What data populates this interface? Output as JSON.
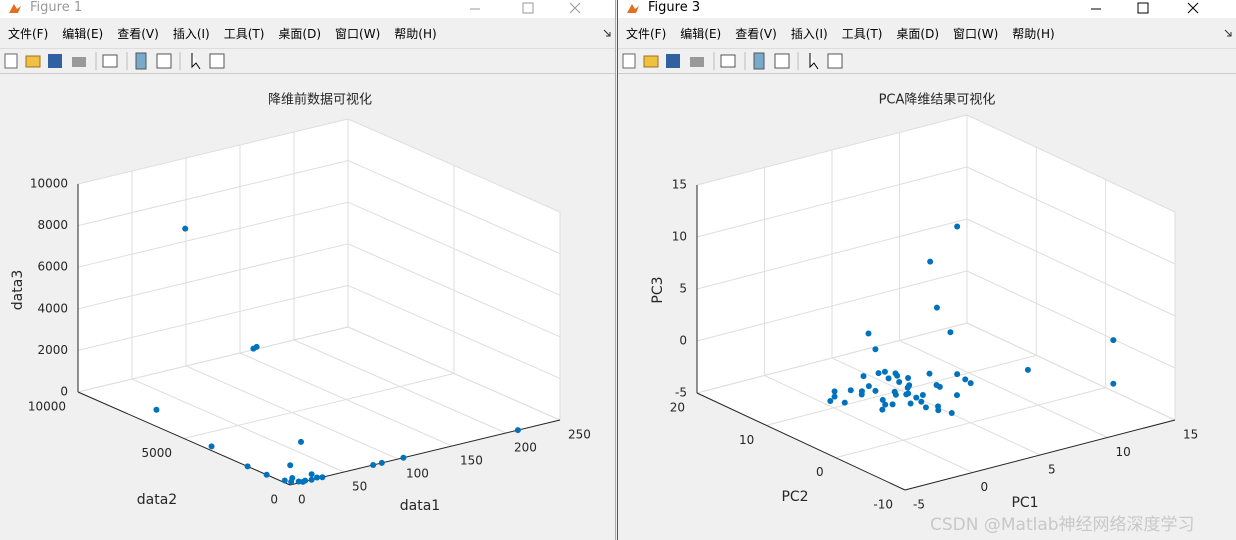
{
  "windows": [
    {
      "title": "Figure 1",
      "menus": [
        "文件(F)",
        "编辑(E)",
        "查看(V)",
        "插入(I)",
        "工具(T)",
        "桌面(D)",
        "窗口(W)",
        "帮助(H)"
      ]
    },
    {
      "title": "Figure 3",
      "menus": [
        "文件(F)",
        "编辑(E)",
        "查看(V)",
        "插入(I)",
        "工具(T)",
        "桌面(D)",
        "窗口(W)",
        "帮助(H)"
      ]
    }
  ],
  "chart_data": [
    {
      "type": "scatter3d",
      "title": "降维前数据可视化",
      "xlabel": "data1",
      "ylabel": "data2",
      "zlabel": "data3",
      "color": "#0072bd",
      "grid": true,
      "x": [
        60,
        25,
        28,
        0,
        0,
        0,
        0,
        20,
        10,
        5,
        10,
        15,
        20,
        25,
        30,
        3,
        8,
        12,
        22,
        77,
        85,
        105,
        211
      ],
      "y": [
        8000,
        3000,
        3000,
        6300,
        3700,
        2000,
        1100,
        500,
        500,
        200,
        100,
        50,
        0,
        0,
        0,
        400,
        300,
        0,
        100,
        0,
        0,
        0,
        0
      ],
      "z": [
        8000,
        4900,
        4950,
        800,
        200,
        0,
        0,
        1600,
        600,
        0,
        0,
        0,
        0,
        50,
        0,
        0,
        100,
        0,
        200,
        0,
        0,
        0,
        0
      ],
      "xlim": [
        0,
        250
      ],
      "ylim": [
        0,
        10000
      ],
      "zlim": [
        0,
        10000
      ],
      "xticks": [
        0,
        50,
        100,
        150,
        200,
        250
      ],
      "yticks": [
        0,
        5000,
        10000
      ],
      "zticks": [
        0,
        2000,
        4000,
        6000,
        8000,
        10000
      ]
    },
    {
      "type": "scatter3d",
      "title": "PCA降维结果可视化",
      "xlabel": "PC1",
      "ylabel": "PC2",
      "zlabel": "PC3",
      "color": "#0072bd",
      "grid": true,
      "x": [
        4,
        2,
        2.5,
        3.5,
        0,
        0,
        13,
        13,
        7.7,
        5,
        4.6,
        4,
        -2,
        1,
        0,
        2,
        1.5,
        0.5,
        2.5,
        -0.5,
        3,
        1,
        2,
        0,
        1.8,
        3.5,
        -1,
        0.8,
        2.2,
        1.2,
        4,
        -0.8,
        0.3,
        2.8,
        1.6,
        3.2,
        -1.5,
        0.6,
        2.4,
        1.4,
        3.8,
        -0.2,
        2.6,
        -2,
        -1.8,
        4.5,
        3.6,
        1,
        -1,
        0.4,
        2
      ],
      "y": [
        0,
        0,
        0,
        0,
        5,
        4,
        -5,
        -5,
        -3,
        0,
        0,
        0,
        6,
        3,
        4,
        2,
        3.5,
        2.5,
        4,
        5,
        3,
        1.5,
        5,
        3,
        2.8,
        2,
        4,
        4.5,
        1,
        3.2,
        2.5,
        6,
        1.8,
        4.8,
        0.5,
        1.2,
        5.5,
        3.8,
        3.6,
        2,
        3.6,
        2.2,
        0,
        6,
        7,
        1,
        0,
        5.5,
        3,
        6.5,
        6
      ],
      "z": [
        14.2,
        11.5,
        6.9,
        4.2,
        3.7,
        2.5,
        1.8,
        -2.4,
        0.1,
        -1.2,
        -0.7,
        0,
        -2,
        -1.9,
        -1.5,
        -2.2,
        -1,
        -2.5,
        -1.8,
        -2,
        -2.6,
        -1.4,
        -0.8,
        -3,
        -0.5,
        -1.5,
        -1.2,
        -2.8,
        -2.9,
        -0.2,
        -2,
        -1.8,
        -1,
        -2.4,
        -2,
        -3.2,
        -2.6,
        0.2,
        -3.4,
        -1.6,
        -1,
        -2.2,
        -3,
        -1.5,
        -2.8,
        -2.5,
        -3.6,
        -0.6,
        -0.4,
        -1,
        -1.6
      ],
      "xlim": [
        -5,
        15
      ],
      "ylim": [
        -10,
        20
      ],
      "zlim": [
        -5,
        15
      ],
      "xticks": [
        -5,
        0,
        5,
        10,
        15
      ],
      "yticks": [
        -10,
        0,
        10,
        20
      ],
      "zticks": [
        -5,
        0,
        5,
        10,
        15
      ]
    }
  ],
  "watermark": "CSDN @Matlab神经网络深度学习"
}
